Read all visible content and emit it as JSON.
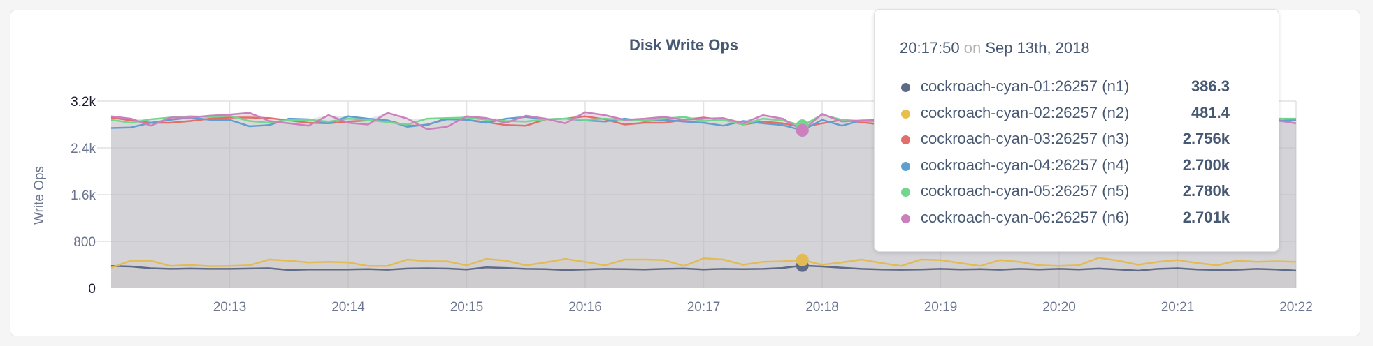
{
  "chart_data": {
    "type": "line",
    "title": "Disk Write Ops",
    "ylabel": "Write Ops",
    "xlabel": "",
    "ylim": [
      0,
      3200
    ],
    "yticks": [
      "0",
      "800",
      "1.6k",
      "2.4k",
      "3.2k"
    ],
    "ytick_values": [
      0,
      800,
      1600,
      2400,
      3200
    ],
    "xlim": [
      "20:12:00",
      "20:22:00"
    ],
    "xticks": [
      "20:13",
      "20:14",
      "20:15",
      "20:16",
      "20:17",
      "20:18",
      "20:19",
      "20:20",
      "20:21",
      "20:22"
    ],
    "sample_interval": "10s",
    "grid": true,
    "series": [
      {
        "name": "cockroach-cyan-01:26257 (n1)",
        "color": "#5f6a87",
        "values": [
          380,
          370,
          340,
          330,
          335,
          330,
          330,
          335,
          340,
          310,
          320,
          320,
          320,
          325,
          315,
          335,
          340,
          335,
          320,
          355,
          345,
          330,
          325,
          310,
          320,
          330,
          325,
          320,
          330,
          335,
          320,
          330,
          325,
          330,
          345,
          386,
          370,
          350,
          330,
          320,
          315,
          320,
          330,
          320,
          325,
          315,
          330,
          320,
          330,
          320,
          335,
          320,
          300,
          330,
          340,
          320,
          310,
          315,
          330,
          320,
          300
        ]
      },
      {
        "name": "cockroach-cyan-02:26257 (n2)",
        "color": "#e3bb55",
        "values": [
          350,
          470,
          470,
          380,
          395,
          375,
          380,
          390,
          490,
          470,
          440,
          450,
          440,
          380,
          380,
          490,
          460,
          460,
          390,
          500,
          470,
          390,
          440,
          500,
          450,
          390,
          490,
          490,
          480,
          380,
          510,
          490,
          400,
          450,
          460,
          481,
          400,
          440,
          490,
          430,
          380,
          490,
          480,
          430,
          380,
          480,
          450,
          390,
          380,
          390,
          520,
          470,
          400,
          450,
          480,
          430,
          390,
          470,
          450,
          460,
          450
        ]
      },
      {
        "name": "cockroach-cyan-03:26257 (n3)",
        "color": "#e36d68",
        "values": [
          2920,
          2870,
          2830,
          2830,
          2860,
          2900,
          2920,
          2920,
          2910,
          2870,
          2830,
          2820,
          2850,
          2870,
          2870,
          2780,
          2790,
          2910,
          2880,
          2840,
          2790,
          2780,
          2890,
          2900,
          2940,
          2890,
          2800,
          2830,
          2830,
          2880,
          2920,
          2880,
          2800,
          2850,
          2820,
          2756,
          2820,
          2880,
          2840,
          2800,
          2850,
          2900,
          2880,
          2800,
          2850,
          2900,
          2880,
          2820,
          2860,
          2900,
          2880,
          2830,
          2820,
          2860,
          2900,
          2880,
          2840,
          2870,
          2850,
          2880,
          2820
        ]
      },
      {
        "name": "cockroach-cyan-04:26257 (n4)",
        "color": "#5f9fd0",
        "values": [
          2740,
          2750,
          2830,
          2880,
          2920,
          2880,
          2880,
          2770,
          2790,
          2900,
          2890,
          2820,
          2940,
          2900,
          2870,
          2760,
          2800,
          2890,
          2880,
          2830,
          2900,
          2930,
          2890,
          2900,
          2870,
          2850,
          2900,
          2860,
          2880,
          2850,
          2830,
          2780,
          2860,
          2820,
          2790,
          2700,
          2880,
          2780,
          2870,
          2860,
          2800,
          2850,
          2880,
          2860,
          2900,
          2850,
          2820,
          2870,
          2880,
          2840,
          2860,
          2900,
          2870,
          2850,
          2880,
          2820,
          2860,
          2870,
          2850,
          2860,
          2880
        ]
      },
      {
        "name": "cockroach-cyan-05:26257 (n5)",
        "color": "#72d68f",
        "values": [
          2880,
          2830,
          2890,
          2920,
          2940,
          2930,
          2950,
          2860,
          2830,
          2880,
          2880,
          2850,
          2900,
          2880,
          2840,
          2800,
          2900,
          2910,
          2920,
          2880,
          2860,
          2850,
          2890,
          2900,
          2880,
          2900,
          2880,
          2870,
          2900,
          2930,
          2860,
          2880,
          2800,
          2900,
          2870,
          2780,
          2970,
          2880,
          2860,
          2850,
          2870,
          2880,
          2900,
          2880,
          2860,
          2900,
          2890,
          2880,
          2860,
          2870,
          2900,
          2880,
          2850,
          2880,
          2900,
          2870,
          2880,
          2860,
          2880,
          2900,
          2900
        ]
      },
      {
        "name": "cockroach-cyan-06:26257 (n6)",
        "color": "#cc7fbd",
        "values": [
          2940,
          2900,
          2780,
          2920,
          2920,
          2950,
          2970,
          3000,
          2860,
          2820,
          2780,
          2960,
          2830,
          2800,
          3000,
          2900,
          2720,
          2760,
          2940,
          2910,
          2830,
          2950,
          2900,
          2820,
          3010,
          2960,
          2880,
          2900,
          2930,
          2880,
          2900,
          2910,
          2820,
          2960,
          2900,
          2701,
          2980,
          2850,
          2870,
          2880,
          2900,
          2860,
          2880,
          2870,
          2900,
          2870,
          2880,
          2900,
          2860,
          2880,
          2900,
          2870,
          2880,
          2850,
          2870,
          2900,
          2880,
          2870,
          2860,
          2870,
          2820
        ]
      }
    ]
  },
  "tooltip": {
    "time": "20:17:50",
    "on": "on",
    "date": "Sep 13th, 2018",
    "rows": [
      {
        "name": "cockroach-cyan-01:26257 (n1)",
        "value": "386.3",
        "color": "#5f6a87"
      },
      {
        "name": "cockroach-cyan-02:26257 (n2)",
        "value": "481.4",
        "color": "#e8bf4a"
      },
      {
        "name": "cockroach-cyan-03:26257 (n3)",
        "value": "2.756k",
        "color": "#e36d68"
      },
      {
        "name": "cockroach-cyan-04:26257 (n4)",
        "value": "2.700k",
        "color": "#5f9fd0"
      },
      {
        "name": "cockroach-cyan-05:26257 (n5)",
        "value": "2.780k",
        "color": "#72d68f"
      },
      {
        "name": "cockroach-cyan-06:26257 (n6)",
        "value": "2.701k",
        "color": "#cc7fbd"
      }
    ]
  }
}
